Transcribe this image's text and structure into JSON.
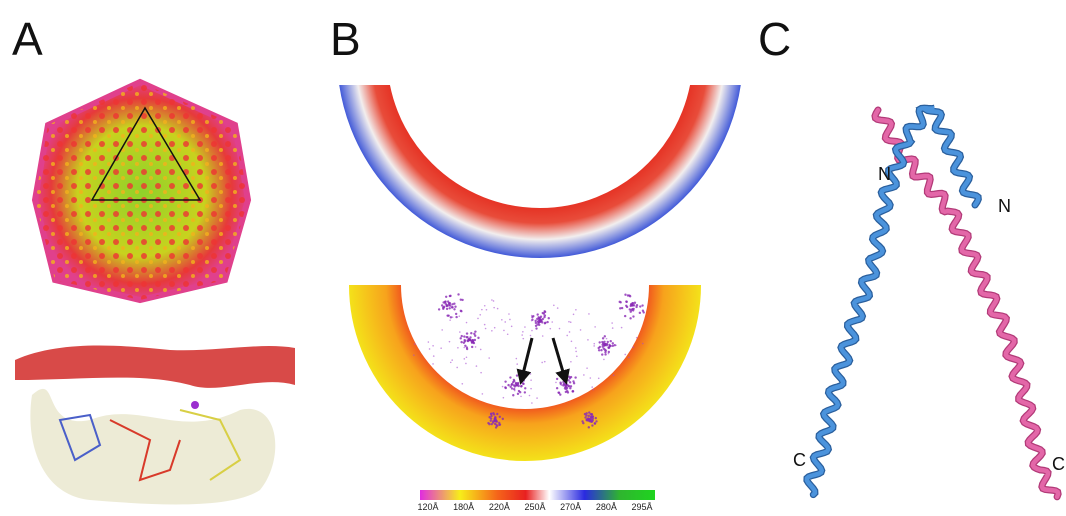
{
  "panels": [
    {
      "label": "A"
    },
    {
      "label": "B",
      "colorbar": {
        "labels": [
          "120Å",
          "180Å",
          "220Å",
          "250Å",
          "270Å",
          "280Å",
          "295Å"
        ]
      }
    },
    {
      "label": "C",
      "annotations": [
        "N",
        "N",
        "C",
        "C"
      ]
    }
  ]
}
